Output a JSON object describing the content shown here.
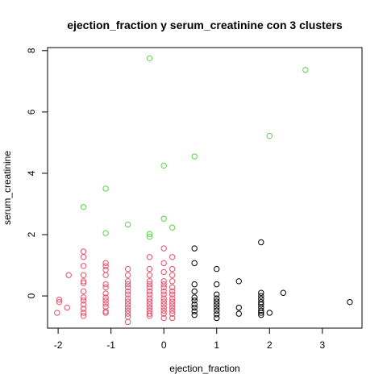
{
  "chart_data": {
    "type": "scatter",
    "title": "ejection_fraction  y  serum_creatinine con  3  clusters",
    "xlabel": "ejection_fraction",
    "ylabel": "serum_creatinine",
    "xlim": [
      -2.2,
      3.75
    ],
    "ylim": [
      -1.05,
      8.1
    ],
    "xticks": [
      -2,
      -1,
      0,
      1,
      2,
      3
    ],
    "yticks": [
      0,
      2,
      4,
      6,
      8
    ],
    "grid": false,
    "colors": {
      "red": "#DF536B",
      "black": "#000000",
      "green": "#61D04F"
    },
    "series": [
      {
        "color": "#DF536B",
        "points": [
          [
            -2.02,
            -0.55
          ],
          [
            -1.98,
            -0.2
          ],
          [
            -1.98,
            -0.12
          ],
          [
            -1.83,
            -0.38
          ],
          [
            -1.8,
            0.68
          ],
          [
            -1.52,
            1.45
          ],
          [
            -1.52,
            1.27
          ],
          [
            -1.52,
            0.98
          ],
          [
            -1.52,
            0.68
          ],
          [
            -1.52,
            0.48
          ],
          [
            -1.52,
            0.42
          ],
          [
            -1.52,
            0.15
          ],
          [
            -1.52,
            -0.05
          ],
          [
            -1.52,
            -0.15
          ],
          [
            -1.52,
            -0.28
          ],
          [
            -1.52,
            -0.42
          ],
          [
            -1.52,
            -0.55
          ],
          [
            -1.52,
            -0.65
          ],
          [
            -1.1,
            1.07
          ],
          [
            -1.1,
            0.97
          ],
          [
            -1.1,
            0.85
          ],
          [
            -1.1,
            0.68
          ],
          [
            -1.1,
            0.38
          ],
          [
            -1.1,
            0.28
          ],
          [
            -1.1,
            0.08
          ],
          [
            -1.1,
            -0.05
          ],
          [
            -1.1,
            -0.15
          ],
          [
            -1.1,
            -0.25
          ],
          [
            -1.1,
            -0.35
          ],
          [
            -1.1,
            -0.5
          ],
          [
            -1.1,
            -0.55
          ],
          [
            -0.68,
            0.88
          ],
          [
            -0.68,
            0.68
          ],
          [
            -0.68,
            0.48
          ],
          [
            -0.68,
            0.38
          ],
          [
            -0.68,
            0.28
          ],
          [
            -0.68,
            0.15
          ],
          [
            -0.68,
            0.05
          ],
          [
            -0.68,
            -0.08
          ],
          [
            -0.68,
            -0.18
          ],
          [
            -0.68,
            -0.28
          ],
          [
            -0.68,
            -0.38
          ],
          [
            -0.68,
            -0.48
          ],
          [
            -0.68,
            -0.58
          ],
          [
            -0.68,
            -0.68
          ],
          [
            -0.68,
            -0.85
          ],
          [
            -0.27,
            1.27
          ],
          [
            -0.27,
            0.88
          ],
          [
            -0.27,
            0.68
          ],
          [
            -0.27,
            0.48
          ],
          [
            -0.27,
            0.38
          ],
          [
            -0.27,
            0.28
          ],
          [
            -0.27,
            0.15
          ],
          [
            -0.27,
            0.05
          ],
          [
            -0.27,
            -0.08
          ],
          [
            -0.27,
            -0.18
          ],
          [
            -0.27,
            -0.28
          ],
          [
            -0.27,
            -0.38
          ],
          [
            -0.27,
            -0.48
          ],
          [
            -0.27,
            -0.58
          ],
          [
            -0.27,
            -0.65
          ],
          [
            0.0,
            1.55
          ],
          [
            0.0,
            1.07
          ],
          [
            0.0,
            0.78
          ],
          [
            0.0,
            0.48
          ],
          [
            0.0,
            0.38
          ],
          [
            0.0,
            0.28
          ],
          [
            0.0,
            0.15
          ],
          [
            0.0,
            0.05
          ],
          [
            0.0,
            -0.08
          ],
          [
            0.0,
            -0.18
          ],
          [
            0.0,
            -0.28
          ],
          [
            0.0,
            -0.38
          ],
          [
            0.0,
            -0.48
          ],
          [
            0.0,
            -0.58
          ],
          [
            0.0,
            -0.72
          ],
          [
            0.16,
            1.27
          ],
          [
            0.16,
            0.88
          ],
          [
            0.16,
            0.68
          ],
          [
            0.16,
            0.48
          ],
          [
            0.16,
            0.28
          ],
          [
            0.16,
            0.15
          ],
          [
            0.16,
            0.05
          ],
          [
            0.16,
            -0.08
          ],
          [
            0.16,
            -0.18
          ],
          [
            0.16,
            -0.28
          ],
          [
            0.16,
            -0.38
          ],
          [
            0.16,
            -0.48
          ],
          [
            0.16,
            -0.58
          ],
          [
            0.16,
            -0.72
          ]
        ]
      },
      {
        "color": "#000000",
        "points": [
          [
            0.58,
            1.55
          ],
          [
            0.58,
            1.07
          ],
          [
            0.58,
            0.38
          ],
          [
            0.58,
            0.15
          ],
          [
            0.58,
            -0.05
          ],
          [
            0.58,
            -0.15
          ],
          [
            0.58,
            -0.28
          ],
          [
            0.58,
            -0.38
          ],
          [
            0.58,
            -0.5
          ],
          [
            0.58,
            -0.62
          ],
          [
            1.0,
            0.88
          ],
          [
            1.0,
            0.38
          ],
          [
            1.0,
            0.05
          ],
          [
            1.0,
            -0.08
          ],
          [
            1.0,
            -0.18
          ],
          [
            1.0,
            -0.28
          ],
          [
            1.0,
            -0.38
          ],
          [
            1.0,
            -0.48
          ],
          [
            1.0,
            -0.6
          ],
          [
            1.0,
            -0.72
          ],
          [
            1.42,
            0.48
          ],
          [
            1.42,
            -0.38
          ],
          [
            1.42,
            -0.58
          ],
          [
            1.84,
            1.75
          ],
          [
            1.84,
            0.1
          ],
          [
            1.84,
            0.0
          ],
          [
            1.84,
            -0.1
          ],
          [
            1.84,
            -0.2
          ],
          [
            1.84,
            -0.28
          ],
          [
            1.84,
            -0.38
          ],
          [
            1.84,
            -0.48
          ],
          [
            1.84,
            -0.55
          ],
          [
            1.84,
            -0.62
          ],
          [
            2.0,
            -0.55
          ],
          [
            2.26,
            0.1
          ],
          [
            3.52,
            -0.2
          ]
        ]
      },
      {
        "color": "#61D04F",
        "points": [
          [
            -1.52,
            2.9
          ],
          [
            -1.1,
            3.5
          ],
          [
            -1.1,
            2.05
          ],
          [
            -0.68,
            2.33
          ],
          [
            -0.27,
            7.75
          ],
          [
            -0.27,
            2.02
          ],
          [
            -0.27,
            1.93
          ],
          [
            0.0,
            4.25
          ],
          [
            0.0,
            2.52
          ],
          [
            0.16,
            2.23
          ],
          [
            0.58,
            4.55
          ],
          [
            2.0,
            5.22
          ],
          [
            2.68,
            7.37
          ]
        ]
      }
    ]
  }
}
